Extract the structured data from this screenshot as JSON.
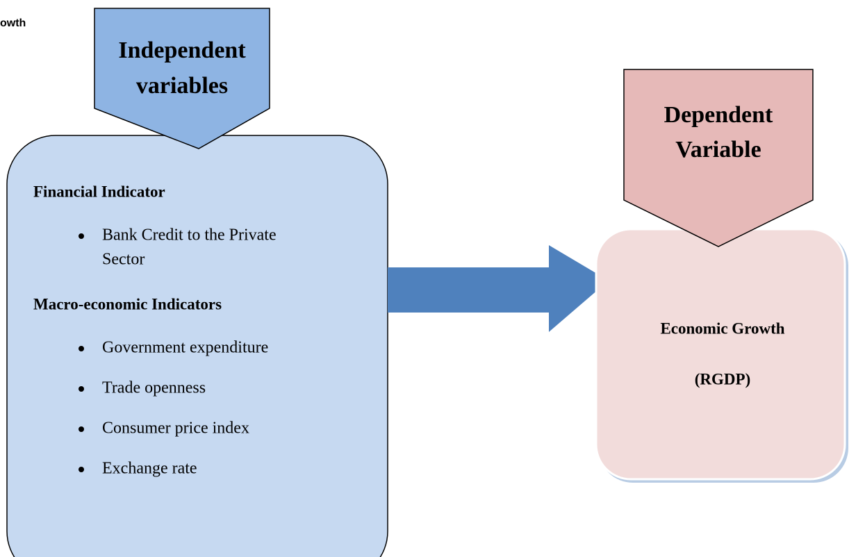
{
  "header": {
    "fragment": "owth"
  },
  "independent": {
    "title": [
      "Independent",
      "variables"
    ],
    "sections": [
      {
        "heading": "Financial Indicator",
        "items": [
          [
            "Bank Credit to the  Private",
            "Sector"
          ]
        ]
      },
      {
        "heading": "Macro-economic Indicators",
        "items": [
          [
            "Government expenditure"
          ],
          [
            "Trade openness"
          ],
          [
            "Consumer price index"
          ],
          [
            "Exchange rate"
          ]
        ]
      }
    ]
  },
  "dependent": {
    "title": [
      "Dependent",
      "Variable"
    ],
    "lines": [
      "Economic Growth",
      "(RGDP)"
    ]
  }
}
